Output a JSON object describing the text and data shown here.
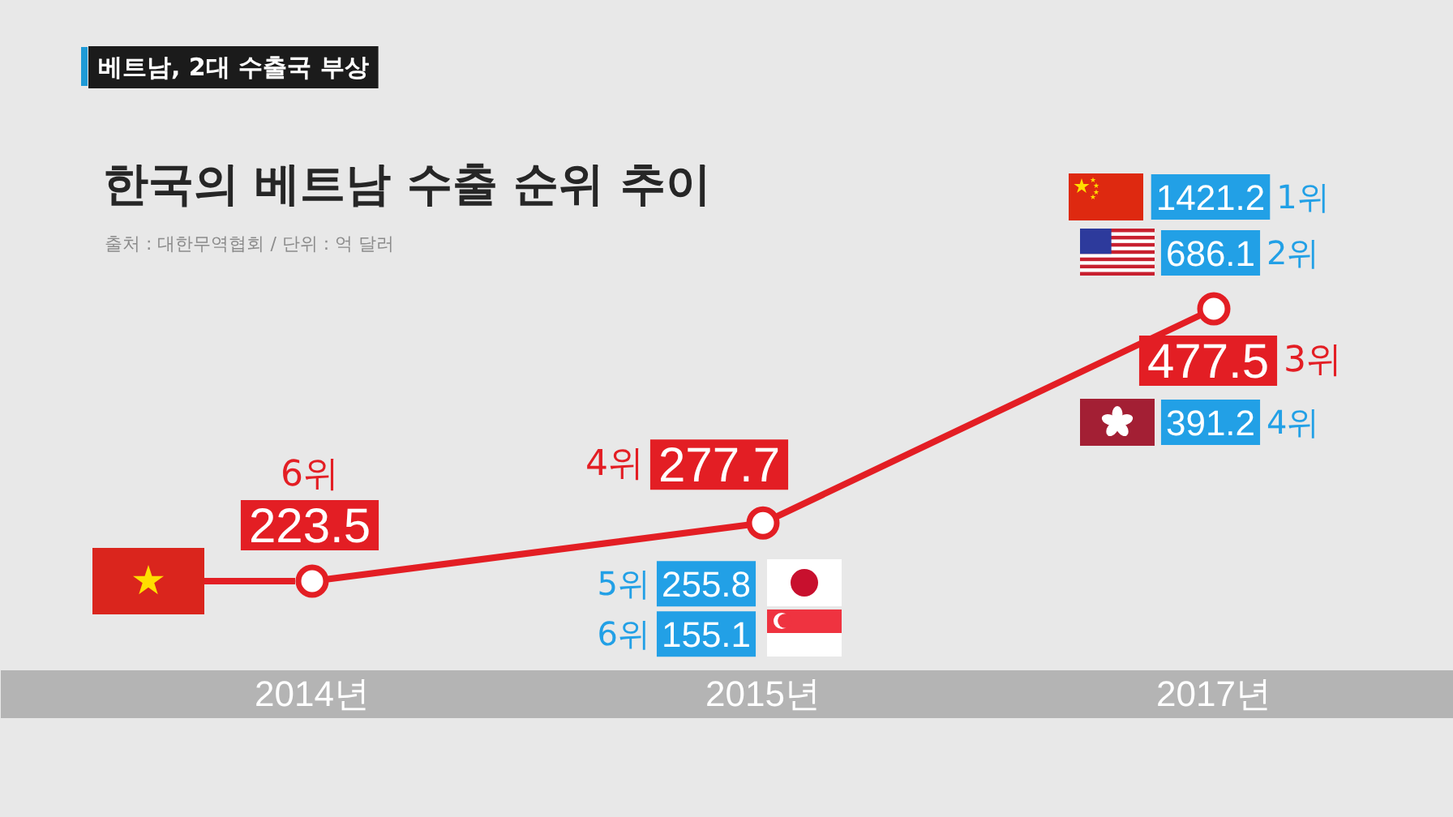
{
  "chart_data": {
    "type": "line",
    "title": "한국의 베트남 수출 순위 추이",
    "subtitle": "출처 : 대한무역협회 / 단위 : 억 달러",
    "categories": [
      "2014년",
      "2015년",
      "2017년"
    ],
    "series": [
      {
        "color": "#e31e24",
        "values": [
          223.5,
          277.7,
          477.5
        ]
      }
    ],
    "marker": "circle",
    "data_labels": true,
    "annotations": [
      "베트남, 2대 수출국 부상",
      "6위",
      "4위",
      "3위",
      "1421.2",
      "1위",
      "686.1",
      "2위",
      "391.2",
      "4위",
      "255.8",
      "5위",
      "155.1",
      "6위"
    ]
  }
}
